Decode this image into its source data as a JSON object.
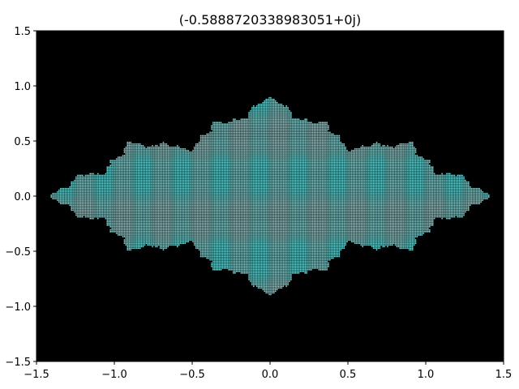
{
  "chart_data": {
    "type": "heatmap",
    "title": "(-0.5888720338983051+0j)",
    "xlabel": "",
    "ylabel": "",
    "xlim": [
      -1.5,
      1.5
    ],
    "ylim": [
      -1.5,
      1.5
    ],
    "grid": false,
    "x_ticks": [
      -1.5,
      -1.0,
      -0.5,
      0.0,
      0.5,
      1.0,
      1.5
    ],
    "y_ticks": [
      -1.5,
      -1.0,
      -0.5,
      0.0,
      0.5,
      1.0,
      1.5
    ],
    "x_tick_labels": [
      "−1.5",
      "−1.0",
      "−0.5",
      "0.0",
      "0.5",
      "1.0",
      "1.5"
    ],
    "y_tick_labels": [
      "−1.5",
      "−1.0",
      "−0.5",
      "0.0",
      "0.5",
      "1.0",
      "1.5"
    ],
    "background_color": "#000000",
    "set_color": "#7fdcdc",
    "outline_color": "#000000",
    "julia_constant": {
      "re": -0.5888720338983051,
      "im": 0.0
    },
    "max_iterations": 40,
    "escape_radius": 2.0
  }
}
